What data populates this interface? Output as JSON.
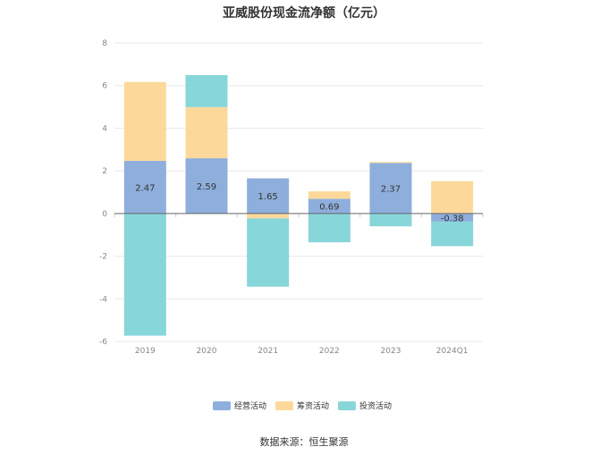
{
  "chart_data": {
    "type": "bar",
    "stacked": true,
    "title": "亚威股份现金流净额（亿元）",
    "categories": [
      "2019",
      "2020",
      "2021",
      "2022",
      "2023",
      "2024Q1"
    ],
    "series": [
      {
        "name": "经营活动",
        "color": "#8eaedc",
        "values": [
          2.47,
          2.59,
          1.65,
          0.69,
          2.37,
          -0.38
        ]
      },
      {
        "name": "筹资活动",
        "color": "#fcd99b",
        "values": [
          3.7,
          2.4,
          -0.23,
          0.35,
          0.05,
          1.52
        ]
      },
      {
        "name": "投资活动",
        "color": "#87d6d9",
        "values": [
          -5.73,
          1.5,
          -3.2,
          -1.35,
          -0.6,
          -1.15
        ]
      }
    ],
    "data_labels": [
      "2.47",
      "2.59",
      "1.65",
      "0.69",
      "2.37",
      "-0.38"
    ],
    "ylim": [
      -6,
      8
    ],
    "yticks": [
      -6,
      -4,
      -2,
      0,
      2,
      4,
      6,
      8
    ],
    "legend_position": "bottom",
    "grid": true
  },
  "source": "数据来源：恒生聚源"
}
